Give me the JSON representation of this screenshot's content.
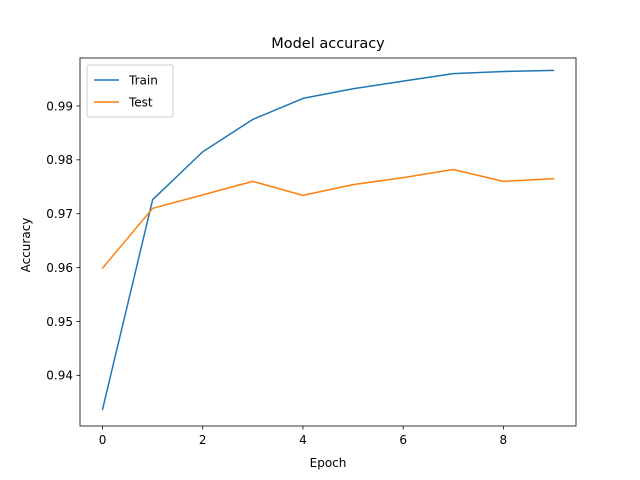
{
  "chart_data": {
    "type": "line",
    "title": "Model accuracy",
    "xlabel": "Epoch",
    "ylabel": "Accuracy",
    "xlim": [
      -0.45,
      9.45
    ],
    "ylim": [
      0.9306,
      0.9989
    ],
    "xticks": [
      0,
      2,
      4,
      6,
      8
    ],
    "xtick_labels": [
      "0",
      "2",
      "4",
      "6",
      "8"
    ],
    "yticks": [
      0.94,
      0.95,
      0.96,
      0.97,
      0.98,
      0.99
    ],
    "ytick_labels": [
      "0.94",
      "0.95",
      "0.96",
      "0.97",
      "0.98",
      "0.99"
    ],
    "grid": false,
    "legend_position": "top-left",
    "x": [
      0,
      1,
      2,
      3,
      4,
      5,
      6,
      7,
      8,
      9
    ],
    "series": [
      {
        "name": "Train",
        "color": "#1f77b4",
        "values": [
          0.9337,
          0.9726,
          0.9815,
          0.9875,
          0.9914,
          0.9932,
          0.9946,
          0.996,
          0.9964,
          0.9966
        ]
      },
      {
        "name": "Test",
        "color": "#ff7f0e",
        "values": [
          0.9599,
          0.971,
          0.9735,
          0.976,
          0.9734,
          0.9754,
          0.9767,
          0.9782,
          0.976,
          0.9765
        ]
      }
    ]
  }
}
